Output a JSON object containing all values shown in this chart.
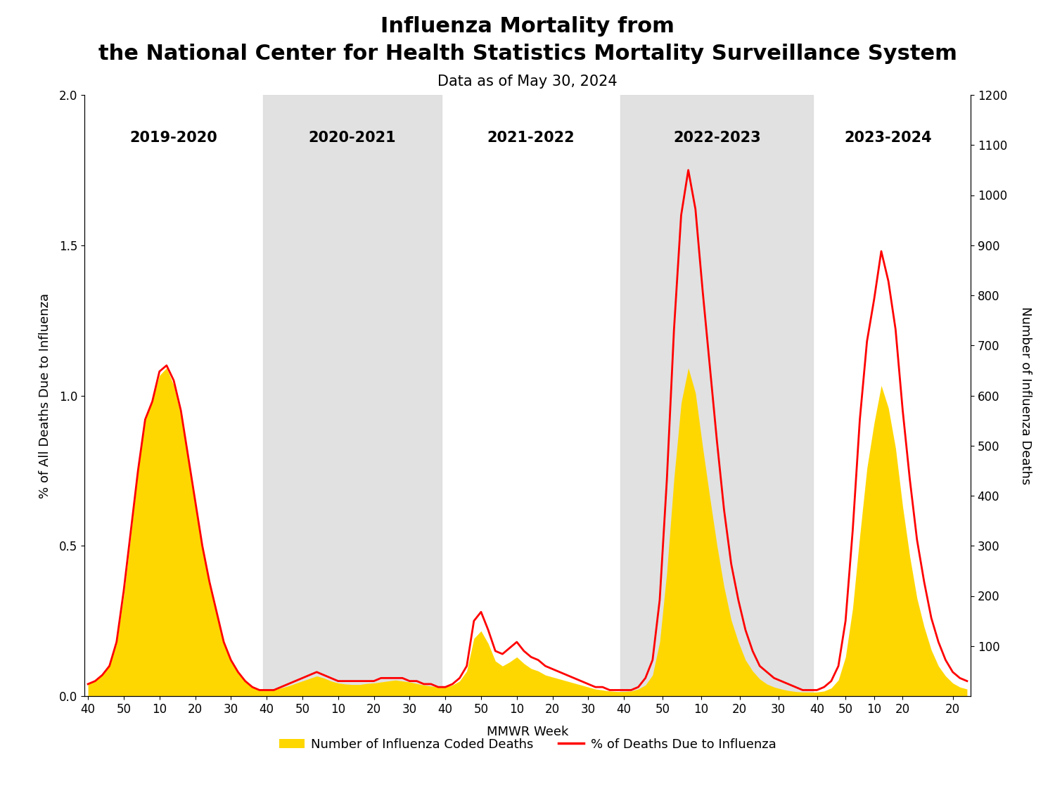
{
  "title_line1": "Influenza Mortality from",
  "title_line2": "the National Center for Health Statistics Mortality Surveillance System",
  "subtitle": "Data as of May 30, 2024",
  "xlabel": "MMWR Week",
  "ylabel_left": "% of All Deaths Due to Influenza",
  "ylabel_right": "Number of Influenza Deaths",
  "legend_deaths": "Number of Influenza Coded Deaths",
  "legend_pct": "% of Deaths Due to Influenza",
  "fill_color": "#FFD700",
  "line_color": "#FF0000",
  "line_width": 2.0,
  "shade_color": "#DCDCDC",
  "bg_color": "#FFFFFF",
  "ylim_left": [
    0.0,
    2.0
  ],
  "ylim_right": [
    0,
    1200
  ],
  "yticks_left": [
    0.0,
    0.5,
    1.0,
    1.5,
    2.0
  ],
  "yticks_right": [
    100,
    200,
    300,
    400,
    500,
    600,
    700,
    800,
    900,
    1000,
    1100,
    1200
  ],
  "title_fontsize": 22,
  "subtitle_fontsize": 15,
  "label_fontsize": 13,
  "tick_fontsize": 12,
  "legend_fontsize": 13,
  "season_label_fontsize": 15,
  "seasons": [
    "2019-2020",
    "2020-2021",
    "2021-2022",
    "2022-2023",
    "2023-2024"
  ],
  "shaded_season_indices": [
    1,
    3
  ],
  "season_boundaries": [
    0,
    25,
    50,
    75,
    102,
    122
  ],
  "pct_data": [
    0.04,
    0.05,
    0.07,
    0.1,
    0.18,
    0.35,
    0.55,
    0.75,
    0.92,
    0.98,
    1.08,
    1.1,
    1.05,
    0.95,
    0.8,
    0.65,
    0.5,
    0.38,
    0.28,
    0.18,
    0.12,
    0.08,
    0.05,
    0.03,
    0.02,
    0.02,
    0.02,
    0.03,
    0.04,
    0.05,
    0.06,
    0.07,
    0.08,
    0.07,
    0.06,
    0.05,
    0.05,
    0.05,
    0.05,
    0.05,
    0.05,
    0.06,
    0.06,
    0.06,
    0.06,
    0.05,
    0.05,
    0.04,
    0.04,
    0.03,
    0.03,
    0.04,
    0.06,
    0.1,
    0.25,
    0.28,
    0.22,
    0.15,
    0.14,
    0.16,
    0.18,
    0.15,
    0.13,
    0.12,
    0.1,
    0.09,
    0.08,
    0.07,
    0.06,
    0.05,
    0.04,
    0.03,
    0.03,
    0.02,
    0.02,
    0.02,
    0.02,
    0.03,
    0.06,
    0.12,
    0.32,
    0.72,
    1.22,
    1.6,
    1.75,
    1.62,
    1.35,
    1.1,
    0.85,
    0.62,
    0.44,
    0.32,
    0.22,
    0.15,
    0.1,
    0.08,
    0.06,
    0.05,
    0.04,
    0.03,
    0.02,
    0.02,
    0.02,
    0.03,
    0.05,
    0.1,
    0.25,
    0.55,
    0.92,
    1.18,
    1.32,
    1.48,
    1.38,
    1.22,
    0.95,
    0.72,
    0.52,
    0.38,
    0.26,
    0.18,
    0.12,
    0.08,
    0.06,
    0.05
  ],
  "deaths_data": [
    25,
    30,
    45,
    65,
    105,
    200,
    320,
    450,
    550,
    590,
    640,
    655,
    620,
    560,
    475,
    385,
    295,
    220,
    162,
    108,
    70,
    45,
    28,
    18,
    12,
    12,
    13,
    16,
    20,
    25,
    30,
    35,
    40,
    36,
    30,
    26,
    24,
    23,
    23,
    25,
    26,
    28,
    30,
    32,
    30,
    28,
    25,
    22,
    20,
    18,
    18,
    22,
    30,
    50,
    115,
    130,
    105,
    70,
    60,
    68,
    78,
    65,
    55,
    50,
    42,
    38,
    34,
    30,
    26,
    22,
    18,
    14,
    12,
    10,
    9,
    9,
    10,
    14,
    22,
    42,
    108,
    248,
    435,
    585,
    655,
    605,
    498,
    398,
    302,
    218,
    152,
    108,
    72,
    50,
    34,
    24,
    18,
    14,
    11,
    9,
    8,
    8,
    8,
    10,
    16,
    32,
    78,
    175,
    320,
    455,
    545,
    620,
    575,
    495,
    378,
    278,
    195,
    138,
    92,
    60,
    40,
    26,
    18,
    14
  ]
}
